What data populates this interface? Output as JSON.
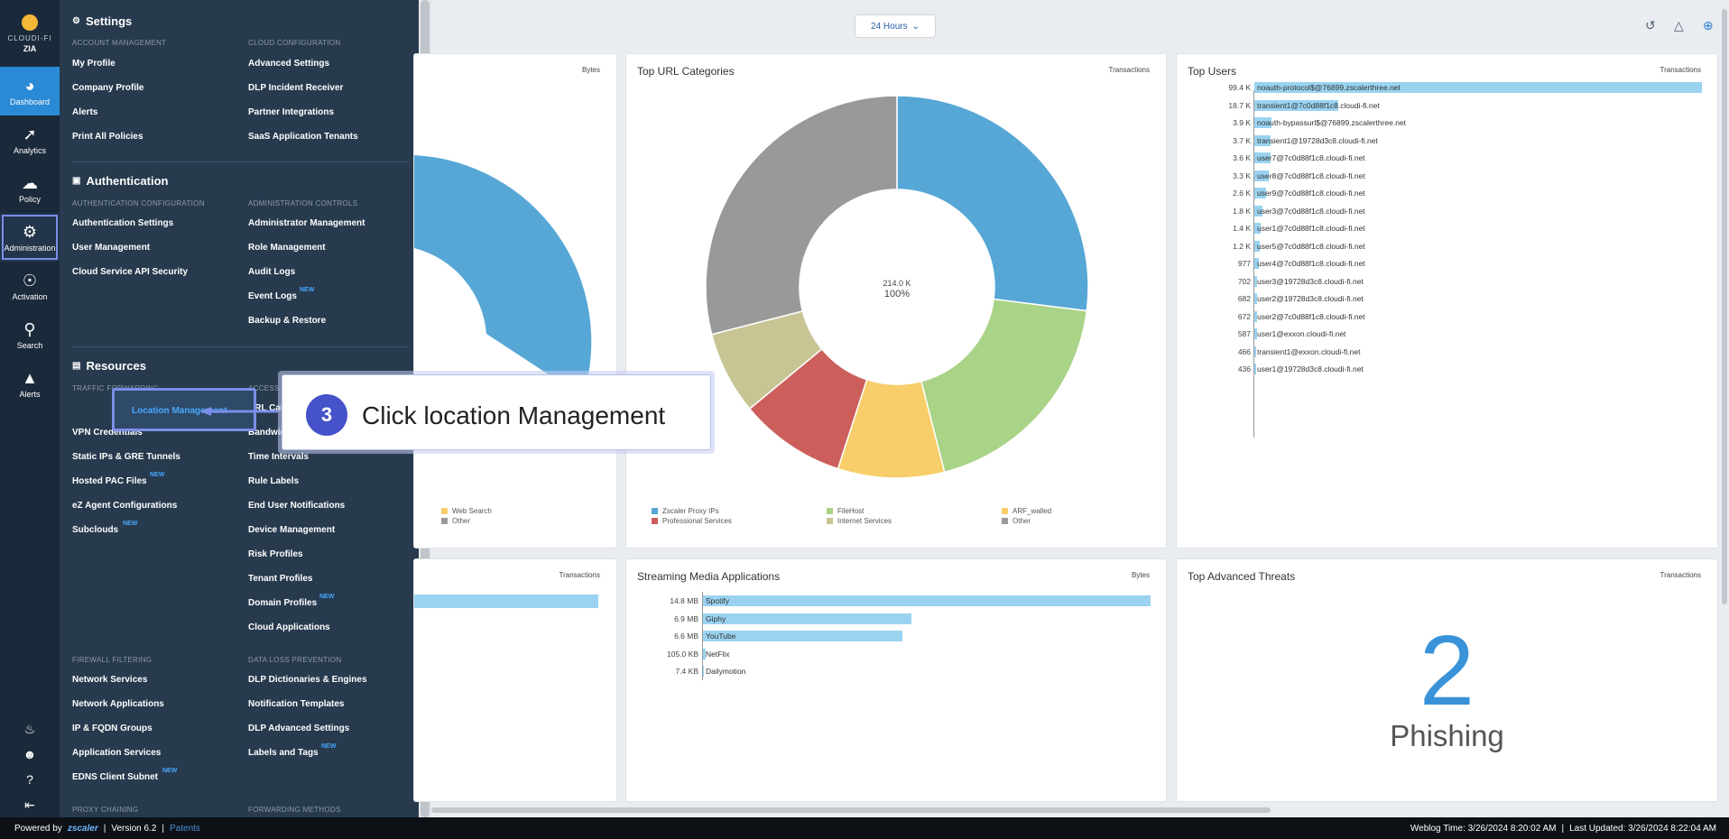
{
  "rail": {
    "brand": "CLOUDI-FI",
    "product": "ZIA",
    "items": [
      {
        "label": "Dashboard",
        "icon": "dashboard-icon"
      },
      {
        "label": "Analytics",
        "icon": "analytics-icon"
      },
      {
        "label": "Policy",
        "icon": "cloud-icon"
      },
      {
        "label": "Administration",
        "icon": "gears-icon"
      },
      {
        "label": "Activation",
        "icon": "activation-icon"
      },
      {
        "label": "Search",
        "icon": "search-icon"
      },
      {
        "label": "Alerts",
        "icon": "alert-icon"
      }
    ]
  },
  "settings": {
    "title": "Settings",
    "account_management": {
      "heading": "ACCOUNT MANAGEMENT",
      "links": [
        "My Profile",
        "Company Profile",
        "Alerts",
        "Print All Policies"
      ]
    },
    "cloud_configuration": {
      "heading": "CLOUD CONFIGURATION",
      "links": [
        "Advanced Settings",
        "DLP Incident Receiver",
        "Partner Integrations",
        "SaaS Application Tenants"
      ]
    }
  },
  "authentication": {
    "title": "Authentication",
    "auth_config": {
      "heading": "AUTHENTICATION CONFIGURATION",
      "links": [
        "Authentication Settings",
        "User Management",
        "Cloud Service API Security"
      ]
    },
    "admin_controls": {
      "heading": "ADMINISTRATION CONTROLS",
      "links": [
        "Administrator Management",
        "Role Management",
        "Audit Logs",
        "Event Logs",
        "Backup & Restore"
      ]
    }
  },
  "resources": {
    "title": "Resources",
    "traffic_forwarding": {
      "heading": "TRAFFIC FORWARDING",
      "links": [
        "Location Management",
        "VPN Credentials",
        "Static IPs & GRE Tunnels",
        "Hosted PAC Files",
        "eZ Agent Configurations",
        "Subclouds"
      ]
    },
    "access_control": {
      "heading": "ACCESS CONTROL",
      "links": [
        "URL Categories",
        "Bandwidth Classes",
        "Time Intervals",
        "Rule Labels",
        "End User Notifications",
        "Device Management",
        "Risk Profiles",
        "Tenant Profiles",
        "Domain Profiles",
        "Cloud Applications"
      ]
    },
    "firewall_filtering": {
      "heading": "FIREWALL FILTERING",
      "links": [
        "Network Services",
        "Network Applications",
        "IP & FQDN Groups",
        "Application Services",
        "EDNS Client Subnet"
      ]
    },
    "data_loss_prevention": {
      "heading": "DATA LOSS PREVENTION",
      "links": [
        "DLP Dictionaries & Engines",
        "Notification Templates",
        "DLP Advanced Settings",
        "Labels and Tags"
      ]
    },
    "proxy_heading": "PROXY CHAINING",
    "forwarding_heading": "FORWARDING METHODS"
  },
  "new_badge": "NEW",
  "callout": {
    "step": "3",
    "text": "Click location Management"
  },
  "toolbar": {
    "time_range": "24 Hours"
  },
  "cards": {
    "left_top": {
      "unit": "Bytes",
      "legend": [
        "Web Search",
        "Other"
      ]
    },
    "url_categories": {
      "title": "Top URL Categories",
      "unit": "Transactions",
      "center_value": "214.0 K",
      "center_pct": "100%",
      "legend": [
        {
          "label": "Zscaler Proxy IPs",
          "color": "#56a7d6"
        },
        {
          "label": "Professional Services",
          "color": "#cc5f5c"
        },
        {
          "label": "FileHost",
          "color": "#a9d387"
        },
        {
          "label": "Internet Services",
          "color": "#c8c594"
        },
        {
          "label": "ARF_walled",
          "color": "#f7ce6a"
        },
        {
          "label": "Other",
          "color": "#999999"
        }
      ]
    },
    "top_users": {
      "title": "Top Users",
      "unit": "Transactions",
      "rows": [
        {
          "value": "99.4 K",
          "label": "noauth-protocol$@76899.zscalerthree.net",
          "frac": 1.0
        },
        {
          "value": "18.7 K",
          "label": "transient1@7c0d88f1c8.cloudi-fi.net",
          "frac": 0.188
        },
        {
          "value": "3.9 K",
          "label": "noauth-bypassurl$@76899.zscalerthree.net",
          "frac": 0.039
        },
        {
          "value": "3.7 K",
          "label": "transient1@19728d3c8.cloudi-fi.net",
          "frac": 0.037
        },
        {
          "value": "3.6 K",
          "label": "user7@7c0d88f1c8.cloudi-fi.net",
          "frac": 0.036
        },
        {
          "value": "3.3 K",
          "label": "user8@7c0d88f1c8.cloudi-fi.net",
          "frac": 0.033
        },
        {
          "value": "2.6 K",
          "label": "user9@7c0d88f1c8.cloudi-fi.net",
          "frac": 0.026
        },
        {
          "value": "1.8 K",
          "label": "user3@7c0d88f1c8.cloudi-fi.net",
          "frac": 0.018
        },
        {
          "value": "1.4 K",
          "label": "user1@7c0d88f1c8.cloudi-fi.net",
          "frac": 0.014
        },
        {
          "value": "1.2 K",
          "label": "user5@7c0d88f1c8.cloudi-fi.net",
          "frac": 0.012
        },
        {
          "value": "977",
          "label": "user4@7c0d88f1c8.cloudi-fi.net",
          "frac": 0.0098
        },
        {
          "value": "702",
          "label": "user3@19728d3c8.cloudi-fi.net",
          "frac": 0.007
        },
        {
          "value": "682",
          "label": "user2@19728d3c8.cloudi-fi.net",
          "frac": 0.0068
        },
        {
          "value": "672",
          "label": "user2@7c0d88f1c8.cloudi-fi.net",
          "frac": 0.0067
        },
        {
          "value": "587",
          "label": "user1@exxon.cloudi-fi.net",
          "frac": 0.0059
        },
        {
          "value": "466",
          "label": "transient1@exxon.cloudi-fi.net",
          "frac": 0.0047
        },
        {
          "value": "436",
          "label": "user1@19728d3c8.cloudi-fi.net",
          "frac": 0.0044
        }
      ]
    },
    "left_bottom": {
      "unit": "Transactions"
    },
    "streaming": {
      "title": "Streaming Media Applications",
      "unit": "Bytes",
      "rows": [
        {
          "value": "14.8 MB",
          "label": "Spotify",
          "frac": 1.0
        },
        {
          "value": "6.9 MB",
          "label": "Giphy",
          "frac": 0.466
        },
        {
          "value": "6.6 MB",
          "label": "YouTube",
          "frac": 0.446
        },
        {
          "value": "105.0 KB",
          "label": "NetFlix",
          "frac": 0.007
        },
        {
          "value": "7.4 KB",
          "label": "Dailymotion",
          "frac": 0.0005
        }
      ]
    },
    "threats": {
      "title": "Top Advanced Threats",
      "unit": "Transactions",
      "count": "2",
      "label": "Phishing"
    }
  },
  "chart_data": {
    "type": "pie",
    "title": "Top URL Categories",
    "categories": [
      "Zscaler Proxy IPs",
      "FileHost",
      "ARF_walled",
      "Professional Services",
      "Internet Services",
      "Other"
    ],
    "values": [
      27,
      19,
      9,
      9,
      7,
      29
    ]
  },
  "footer": {
    "powered_by": "Powered by",
    "brand": "zscaler",
    "version": "Version 6.2",
    "patents": "Patents",
    "weblog": "Weblog Time: 3/26/2024 8:20:02 AM",
    "updated": "Last Updated: 3/26/2024 8:22:04 AM"
  }
}
